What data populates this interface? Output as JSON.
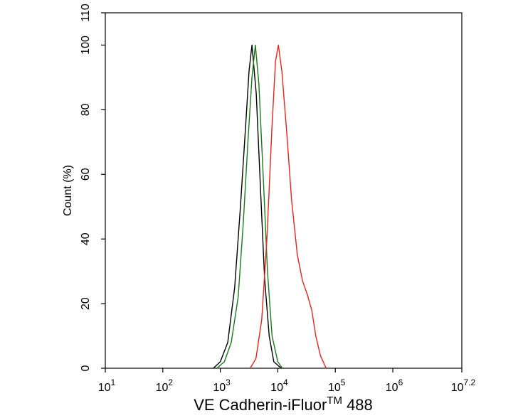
{
  "chart_data": {
    "type": "line",
    "x_label": {
      "text": "VE Cadherin-iFluor",
      "superscript": "TM",
      "suffix": " 488"
    },
    "y_label": "Count  (%)",
    "xscale": "log",
    "xlim": [
      10,
      15848931.92
    ],
    "xticks": [
      {
        "value": 10,
        "label": "10",
        "exponent": "1"
      },
      {
        "value": 100,
        "label": "10",
        "exponent": "2"
      },
      {
        "value": 1000,
        "label": "10",
        "exponent": "3"
      },
      {
        "value": 10000,
        "label": "10",
        "exponent": "4"
      },
      {
        "value": 100000,
        "label": "10",
        "exponent": "5"
      },
      {
        "value": 1000000,
        "label": "10",
        "exponent": "6"
      },
      {
        "value": 15848931.92,
        "label": "10",
        "exponent": "7.2"
      }
    ],
    "ylim": [
      0,
      110
    ],
    "yticks": [
      0,
      20,
      40,
      60,
      80,
      100,
      110
    ],
    "series": [
      {
        "color": "#000000",
        "x": [
          759,
          1000,
          1349,
          1778,
          2239,
          2754,
          3162,
          3548,
          4217,
          5012,
          5888,
          7079,
          8511,
          11482
        ],
        "values": [
          0,
          2,
          8,
          25,
          50,
          75,
          92,
          100,
          85,
          55,
          28,
          10,
          2,
          0
        ]
      },
      {
        "color": "#1a7a1a",
        "x": [
          871,
          1175,
          1549,
          2042,
          2512,
          3020,
          3548,
          4074,
          4677,
          5623,
          6607,
          7943,
          10000,
          12023
        ],
        "values": [
          0,
          2,
          8,
          22,
          45,
          70,
          90,
          100,
          88,
          58,
          30,
          10,
          2,
          0
        ]
      },
      {
        "color": "#e8231a",
        "x": [
          3311,
          4169,
          5248,
          6457,
          7943,
          9120,
          10233,
          11749,
          14454,
          17378,
          21878,
          26915,
          32359,
          38905,
          45709,
          54954,
          69183
        ],
        "values": [
          0,
          3,
          15,
          40,
          75,
          95,
          100,
          92,
          72,
          52,
          35,
          27,
          23,
          18,
          10,
          4,
          0
        ]
      }
    ]
  }
}
